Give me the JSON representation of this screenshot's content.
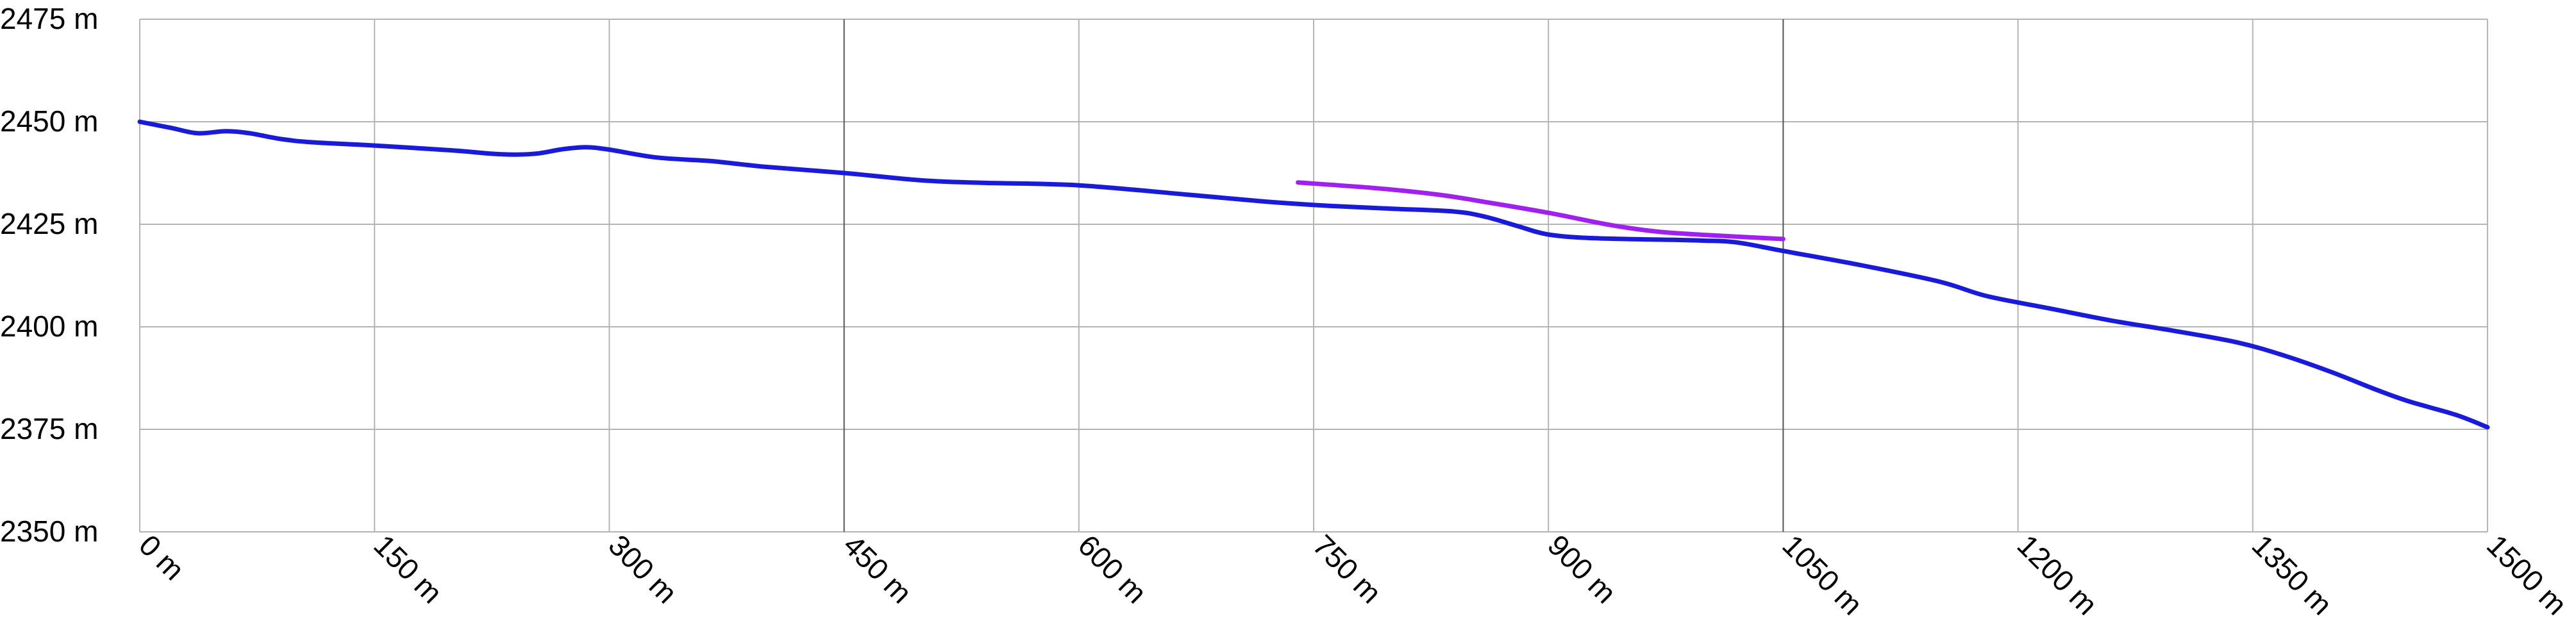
{
  "chart_data": {
    "type": "line",
    "title": "",
    "xlabel": "",
    "ylabel": "",
    "xlim": [
      0,
      1500
    ],
    "ylim": [
      2350,
      2475
    ],
    "x_ticks": [
      0,
      150,
      300,
      450,
      600,
      750,
      900,
      1050,
      1200,
      1350,
      1500
    ],
    "y_ticks": [
      2350,
      2375,
      2400,
      2425,
      2450,
      2475
    ],
    "x_tick_labels": [
      "0 m",
      "150 m",
      "300 m",
      "450 m",
      "600 m",
      "750 m",
      "900 m",
      "1050 m",
      "1200 m",
      "1350 m",
      "1500 m"
    ],
    "y_tick_labels": [
      "2350 m",
      "2375 m",
      "2400 m",
      "2425 m",
      "2450 m",
      "2475 m"
    ],
    "grid": true,
    "legend": "none",
    "series": [
      {
        "color": "#1a1adb",
        "points": [
          [
            0,
            2450
          ],
          [
            20,
            2448.5
          ],
          [
            37,
            2447.2
          ],
          [
            55,
            2447.7
          ],
          [
            70,
            2447.2
          ],
          [
            90,
            2445.8
          ],
          [
            110,
            2445
          ],
          [
            150,
            2444.2
          ],
          [
            200,
            2443
          ],
          [
            225,
            2442.2
          ],
          [
            240,
            2442
          ],
          [
            255,
            2442.3
          ],
          [
            270,
            2443.3
          ],
          [
            285,
            2443.8
          ],
          [
            300,
            2443.2
          ],
          [
            330,
            2441.3
          ],
          [
            365,
            2440.4
          ],
          [
            400,
            2439
          ],
          [
            450,
            2437.5
          ],
          [
            500,
            2435.7
          ],
          [
            540,
            2435.1
          ],
          [
            600,
            2434.5
          ],
          [
            670,
            2432.2
          ],
          [
            720,
            2430.5
          ],
          [
            760,
            2429.5
          ],
          [
            800,
            2428.8
          ],
          [
            840,
            2428.1
          ],
          [
            860,
            2426.8
          ],
          [
            880,
            2424.6
          ],
          [
            900,
            2422.5
          ],
          [
            930,
            2421.6
          ],
          [
            980,
            2421.2
          ],
          [
            1000,
            2421
          ],
          [
            1020,
            2420.6
          ],
          [
            1050,
            2418.5
          ],
          [
            1100,
            2415
          ],
          [
            1150,
            2411
          ],
          [
            1180,
            2407.5
          ],
          [
            1220,
            2404.5
          ],
          [
            1260,
            2401.5
          ],
          [
            1300,
            2399
          ],
          [
            1340,
            2396.2
          ],
          [
            1370,
            2393
          ],
          [
            1400,
            2389
          ],
          [
            1430,
            2384.5
          ],
          [
            1450,
            2381.8
          ],
          [
            1480,
            2378.5
          ],
          [
            1500,
            2375.5
          ]
        ]
      },
      {
        "color": "#a020f0",
        "points": [
          [
            740,
            2435.2
          ],
          [
            790,
            2433.8
          ],
          [
            830,
            2432.2
          ],
          [
            860,
            2430.4
          ],
          [
            900,
            2427.8
          ],
          [
            940,
            2424.8
          ],
          [
            970,
            2423.2
          ],
          [
            1000,
            2422.4
          ],
          [
            1030,
            2421.8
          ],
          [
            1050,
            2421.4
          ]
        ]
      }
    ]
  }
}
